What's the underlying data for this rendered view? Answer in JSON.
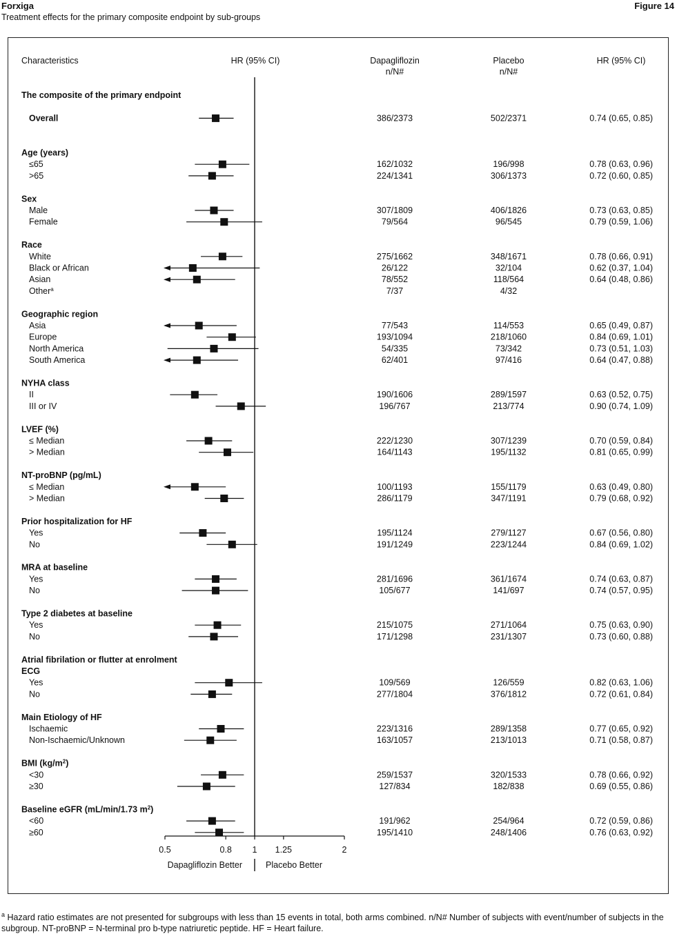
{
  "header": {
    "brand": "Forxiga",
    "figure_label": "Figure 14",
    "subtitle": "Treatment effects for the primary composite endpoint by sub-groups"
  },
  "footnote": {
    "marker": "a",
    "text": "Hazard ratio estimates are not presented for subgroups with less than 15 events in total, both arms combined. n/N# Number of subjects with event/number of subjects in the subgroup. NT-proBNP = N-terminal pro b-type natriuretic peptide. HF = Heart failure."
  },
  "chart_data": {
    "type": "forest",
    "title": "Treatment effects for the primary composite endpoint by sub-groups",
    "columns": {
      "characteristics": "Characteristics",
      "hr_plot": "HR (95% CI)",
      "dapa": [
        "Dapagliflozin",
        "n/N#"
      ],
      "placebo": [
        "Placebo",
        "n/N#"
      ],
      "hr_text": "HR (95% CI)"
    },
    "x_axis": {
      "scale": "log",
      "range": [
        0.5,
        2
      ],
      "ticks": [
        0.5,
        0.8,
        1,
        1.25,
        2
      ],
      "tick_labels": [
        "0.5",
        "0.8",
        "1",
        "1.25",
        "2"
      ],
      "reference_line": 1
    },
    "direction_labels": {
      "left": "Dapagliflozin Better",
      "right": "Placebo Better"
    },
    "rows": [
      {
        "kind": "header",
        "label": "The composite of the primary endpoint"
      },
      {
        "kind": "item",
        "label": "Overall",
        "bold": true,
        "dapa": "386/2373",
        "placebo": "502/2371",
        "hr_text": "0.74 (0.65, 0.85)",
        "hr": 0.74,
        "lo": 0.65,
        "hi": 0.85
      },
      {
        "kind": "header",
        "label": "Age (years)"
      },
      {
        "kind": "item",
        "label": "≤65",
        "dapa": "162/1032",
        "placebo": "196/998",
        "hr_text": "0.78 (0.63, 0.96)",
        "hr": 0.78,
        "lo": 0.63,
        "hi": 0.96
      },
      {
        "kind": "item",
        "label": ">65",
        "dapa": "224/1341",
        "placebo": "306/1373",
        "hr_text": "0.72 (0.60, 0.85)",
        "hr": 0.72,
        "lo": 0.6,
        "hi": 0.85
      },
      {
        "kind": "header",
        "label": "Sex"
      },
      {
        "kind": "item",
        "label": "Male",
        "dapa": "307/1809",
        "placebo": "406/1826",
        "hr_text": "0.73 (0.63, 0.85)",
        "hr": 0.73,
        "lo": 0.63,
        "hi": 0.85
      },
      {
        "kind": "item",
        "label": "Female",
        "dapa": "79/564",
        "placebo": "96/545",
        "hr_text": "0.79 (0.59, 1.06)",
        "hr": 0.79,
        "lo": 0.59,
        "hi": 1.06
      },
      {
        "kind": "header",
        "label": "Race"
      },
      {
        "kind": "item",
        "label": "White",
        "dapa": "275/1662",
        "placebo": "348/1671",
        "hr_text": "0.78 (0.66, 0.91)",
        "hr": 0.78,
        "lo": 0.66,
        "hi": 0.91
      },
      {
        "kind": "item",
        "label": "Black or African",
        "dapa": "26/122",
        "placebo": "32/104",
        "hr_text": "0.62 (0.37, 1.04)",
        "hr": 0.62,
        "lo": 0.37,
        "hi": 1.04
      },
      {
        "kind": "item",
        "label": "Asian",
        "dapa": "78/552",
        "placebo": "118/564",
        "hr_text": "0.64 (0.48, 0.86)",
        "hr": 0.64,
        "lo": 0.48,
        "hi": 0.86
      },
      {
        "kind": "item",
        "label": "Other",
        "sup": "a",
        "dapa": "7/37",
        "placebo": "4/32",
        "hr_text": ""
      },
      {
        "kind": "header",
        "label": "Geographic region"
      },
      {
        "kind": "item",
        "label": "Asia",
        "dapa": "77/543",
        "placebo": "114/553",
        "hr_text": "0.65 (0.49, 0.87)",
        "hr": 0.65,
        "lo": 0.49,
        "hi": 0.87
      },
      {
        "kind": "item",
        "label": "Europe",
        "dapa": "193/1094",
        "placebo": "218/1060",
        "hr_text": "0.84 (0.69, 1.01)",
        "hr": 0.84,
        "lo": 0.69,
        "hi": 1.01
      },
      {
        "kind": "item",
        "label": "North America",
        "dapa": "54/335",
        "placebo": "73/342",
        "hr_text": "0.73 (0.51, 1.03)",
        "hr": 0.73,
        "lo": 0.51,
        "hi": 1.03
      },
      {
        "kind": "item",
        "label": "South America",
        "dapa": "62/401",
        "placebo": "97/416",
        "hr_text": "0.64 (0.47, 0.88)",
        "hr": 0.64,
        "lo": 0.47,
        "hi": 0.88
      },
      {
        "kind": "header",
        "label": "NYHA class"
      },
      {
        "kind": "item",
        "label": "II",
        "dapa": "190/1606",
        "placebo": "289/1597",
        "hr_text": "0.63 (0.52, 0.75)",
        "hr": 0.63,
        "lo": 0.52,
        "hi": 0.75
      },
      {
        "kind": "item",
        "label": "III or IV",
        "dapa": "196/767",
        "placebo": "213/774",
        "hr_text": "0.90 (0.74, 1.09)",
        "hr": 0.9,
        "lo": 0.74,
        "hi": 1.09
      },
      {
        "kind": "header",
        "label": "LVEF (%)"
      },
      {
        "kind": "item",
        "label": "≤ Median",
        "dapa": "222/1230",
        "placebo": "307/1239",
        "hr_text": "0.70 (0.59, 0.84)",
        "hr": 0.7,
        "lo": 0.59,
        "hi": 0.84
      },
      {
        "kind": "item",
        "label": "> Median",
        "dapa": "164/1143",
        "placebo": "195/1132",
        "hr_text": "0.81 (0.65, 0.99)",
        "hr": 0.81,
        "lo": 0.65,
        "hi": 0.99
      },
      {
        "kind": "header",
        "label": "NT-proBNP (pg/mL)"
      },
      {
        "kind": "item",
        "label": "≤ Median",
        "dapa": "100/1193",
        "placebo": "155/1179",
        "hr_text": "0.63 (0.49, 0.80)",
        "hr": 0.63,
        "lo": 0.49,
        "hi": 0.8
      },
      {
        "kind": "item",
        "label": "> Median",
        "dapa": "286/1179",
        "placebo": "347/1191",
        "hr_text": "0.79 (0.68, 0.92)",
        "hr": 0.79,
        "lo": 0.68,
        "hi": 0.92
      },
      {
        "kind": "header",
        "label": "Prior hospitalization for HF"
      },
      {
        "kind": "item",
        "label": "Yes",
        "dapa": "195/1124",
        "placebo": "279/1127",
        "hr_text": "0.67 (0.56, 0.80)",
        "hr": 0.67,
        "lo": 0.56,
        "hi": 0.8
      },
      {
        "kind": "item",
        "label": "No",
        "dapa": "191/1249",
        "placebo": "223/1244",
        "hr_text": "0.84 (0.69, 1.02)",
        "hr": 0.84,
        "lo": 0.69,
        "hi": 1.02
      },
      {
        "kind": "header",
        "label": "MRA at baseline"
      },
      {
        "kind": "item",
        "label": "Yes",
        "dapa": "281/1696",
        "placebo": "361/1674",
        "hr_text": "0.74 (0.63, 0.87)",
        "hr": 0.74,
        "lo": 0.63,
        "hi": 0.87
      },
      {
        "kind": "item",
        "label": "No",
        "dapa": "105/677",
        "placebo": "141/697",
        "hr_text": "0.74 (0.57, 0.95)",
        "hr": 0.74,
        "lo": 0.57,
        "hi": 0.95
      },
      {
        "kind": "header",
        "label": "Type 2 diabetes at baseline"
      },
      {
        "kind": "item",
        "label": "Yes",
        "dapa": "215/1075",
        "placebo": "271/1064",
        "hr_text": "0.75 (0.63, 0.90)",
        "hr": 0.75,
        "lo": 0.63,
        "hi": 0.9
      },
      {
        "kind": "item",
        "label": "No",
        "dapa": "171/1298",
        "placebo": "231/1307",
        "hr_text": "0.73 (0.60, 0.88)",
        "hr": 0.73,
        "lo": 0.6,
        "hi": 0.88
      },
      {
        "kind": "header",
        "label": "Atrial fibrilation or flutter at enrolment"
      },
      {
        "kind": "header",
        "label": "ECG"
      },
      {
        "kind": "item",
        "label": "Yes",
        "dapa": "109/569",
        "placebo": "126/559",
        "hr_text": "0.82 (0.63, 1.06)",
        "hr": 0.82,
        "lo": 0.63,
        "hi": 1.06
      },
      {
        "kind": "item",
        "label": "No",
        "dapa": "277/1804",
        "placebo": "376/1812",
        "hr_text": "0.72 (0.61, 0.84)",
        "hr": 0.72,
        "lo": 0.61,
        "hi": 0.84
      },
      {
        "kind": "header",
        "label": "Main Etiology of HF"
      },
      {
        "kind": "item",
        "label": "Ischaemic",
        "dapa": "223/1316",
        "placebo": "289/1358",
        "hr_text": "0.77 (0.65, 0.92)",
        "hr": 0.77,
        "lo": 0.65,
        "hi": 0.92
      },
      {
        "kind": "item",
        "label": "Non-Ischaemic/Unknown",
        "dapa": "163/1057",
        "placebo": "213/1013",
        "hr_text": "0.71 (0.58, 0.87)",
        "hr": 0.71,
        "lo": 0.58,
        "hi": 0.87
      },
      {
        "kind": "header",
        "label": "BMI (kg/m",
        "sup": "2",
        "label_after": ")"
      },
      {
        "kind": "item",
        "label": "<30",
        "dapa": "259/1537",
        "placebo": "320/1533",
        "hr_text": "0.78 (0.66, 0.92)",
        "hr": 0.78,
        "lo": 0.66,
        "hi": 0.92
      },
      {
        "kind": "item",
        "label": "≥30",
        "dapa": "127/834",
        "placebo": "182/838",
        "hr_text": "0.69 (0.55, 0.86)",
        "hr": 0.69,
        "lo": 0.55,
        "hi": 0.86
      },
      {
        "kind": "header",
        "label": "Baseline eGFR (mL/min/1.73 m",
        "sup": "2",
        "label_after": ")"
      },
      {
        "kind": "item",
        "label": "<60",
        "dapa": "191/962",
        "placebo": "254/964",
        "hr_text": "0.72 (0.59, 0.86)",
        "hr": 0.72,
        "lo": 0.59,
        "hi": 0.86
      },
      {
        "kind": "item",
        "label": "≥60",
        "dapa": "195/1410",
        "placebo": "248/1406",
        "hr_text": "0.76 (0.63, 0.92)",
        "hr": 0.76,
        "lo": 0.63,
        "hi": 0.92
      }
    ]
  }
}
